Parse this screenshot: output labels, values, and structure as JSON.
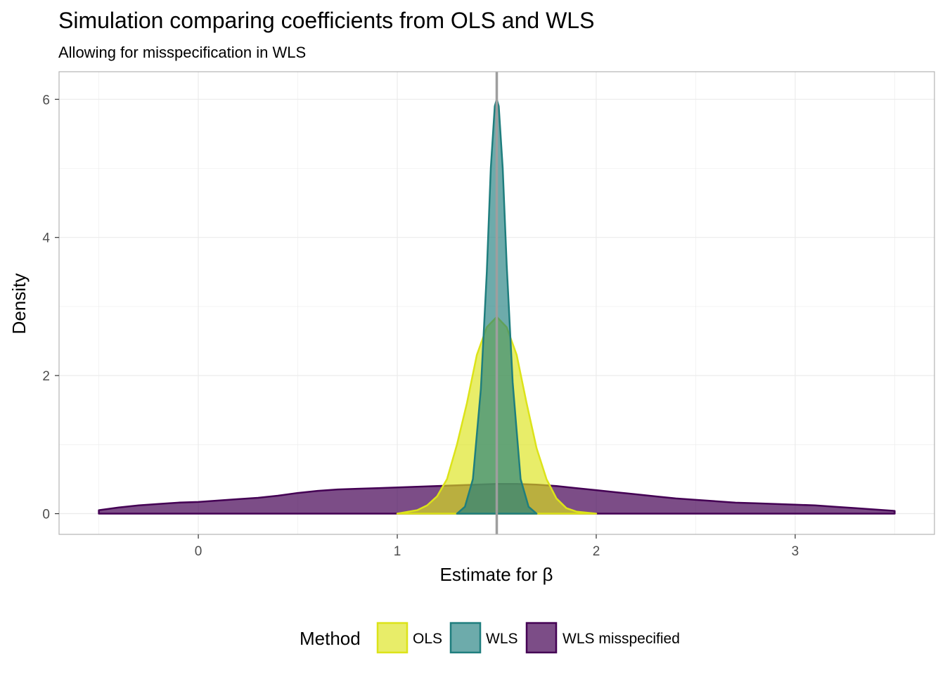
{
  "chart_data": {
    "type": "area",
    "title": "Simulation comparing coefficients from OLS and WLS",
    "subtitle": "Allowing for misspecification in WLS",
    "xlabel": "Estimate for β",
    "ylabel": "Density",
    "xlim": [
      -0.7,
      3.7
    ],
    "ylim": [
      -0.3,
      6.4
    ],
    "x_ticks": [
      0,
      1,
      2,
      3
    ],
    "x_tick_labels": [
      "0",
      "1",
      "2",
      "3"
    ],
    "y_ticks": [
      0,
      2,
      4,
      6
    ],
    "y_tick_labels": [
      "0",
      "2",
      "4",
      "6"
    ],
    "reference_line": {
      "x": 1.5,
      "color": "#9e9e9e"
    },
    "grid": true,
    "legend": {
      "title": "Method",
      "position": "bottom"
    },
    "series": [
      {
        "name": "WLS misspecified",
        "fill": "#440154",
        "stroke": "#440154",
        "fill_opacity": 0.7,
        "x": [
          -0.5,
          -0.4,
          -0.3,
          -0.2,
          -0.1,
          0.0,
          0.1,
          0.2,
          0.3,
          0.4,
          0.5,
          0.6,
          0.7,
          0.8,
          0.9,
          1.0,
          1.1,
          1.2,
          1.3,
          1.4,
          1.5,
          1.6,
          1.7,
          1.8,
          1.9,
          2.0,
          2.1,
          2.2,
          2.3,
          2.4,
          2.5,
          2.6,
          2.7,
          2.8,
          2.9,
          3.0,
          3.1,
          3.2,
          3.3,
          3.4,
          3.5
        ],
        "y": [
          0.05,
          0.09,
          0.12,
          0.14,
          0.16,
          0.17,
          0.19,
          0.21,
          0.23,
          0.26,
          0.3,
          0.33,
          0.35,
          0.36,
          0.37,
          0.38,
          0.39,
          0.4,
          0.41,
          0.42,
          0.43,
          0.43,
          0.42,
          0.4,
          0.37,
          0.34,
          0.31,
          0.28,
          0.25,
          0.22,
          0.2,
          0.18,
          0.16,
          0.15,
          0.14,
          0.13,
          0.12,
          0.1,
          0.08,
          0.06,
          0.04
        ]
      },
      {
        "name": "OLS",
        "fill": "#dce319",
        "stroke": "#dce319",
        "fill_opacity": 0.65,
        "x": [
          1.0,
          1.1,
          1.15,
          1.2,
          1.25,
          1.3,
          1.35,
          1.4,
          1.45,
          1.5,
          1.55,
          1.6,
          1.65,
          1.7,
          1.75,
          1.8,
          1.85,
          1.9,
          2.0
        ],
        "y": [
          0.0,
          0.05,
          0.12,
          0.25,
          0.5,
          1.0,
          1.6,
          2.3,
          2.7,
          2.85,
          2.7,
          2.3,
          1.6,
          0.95,
          0.5,
          0.22,
          0.08,
          0.03,
          0.0
        ]
      },
      {
        "name": "WLS",
        "fill": "#1f7e7e",
        "stroke": "#1f7e7e",
        "fill_opacity": 0.65,
        "x": [
          1.3,
          1.34,
          1.38,
          1.42,
          1.45,
          1.47,
          1.49,
          1.5,
          1.51,
          1.53,
          1.55,
          1.58,
          1.62,
          1.66,
          1.7
        ],
        "y": [
          0.0,
          0.1,
          0.5,
          1.8,
          3.5,
          5.0,
          5.9,
          6.0,
          5.9,
          5.0,
          3.6,
          1.9,
          0.5,
          0.1,
          0.0
        ]
      }
    ]
  }
}
